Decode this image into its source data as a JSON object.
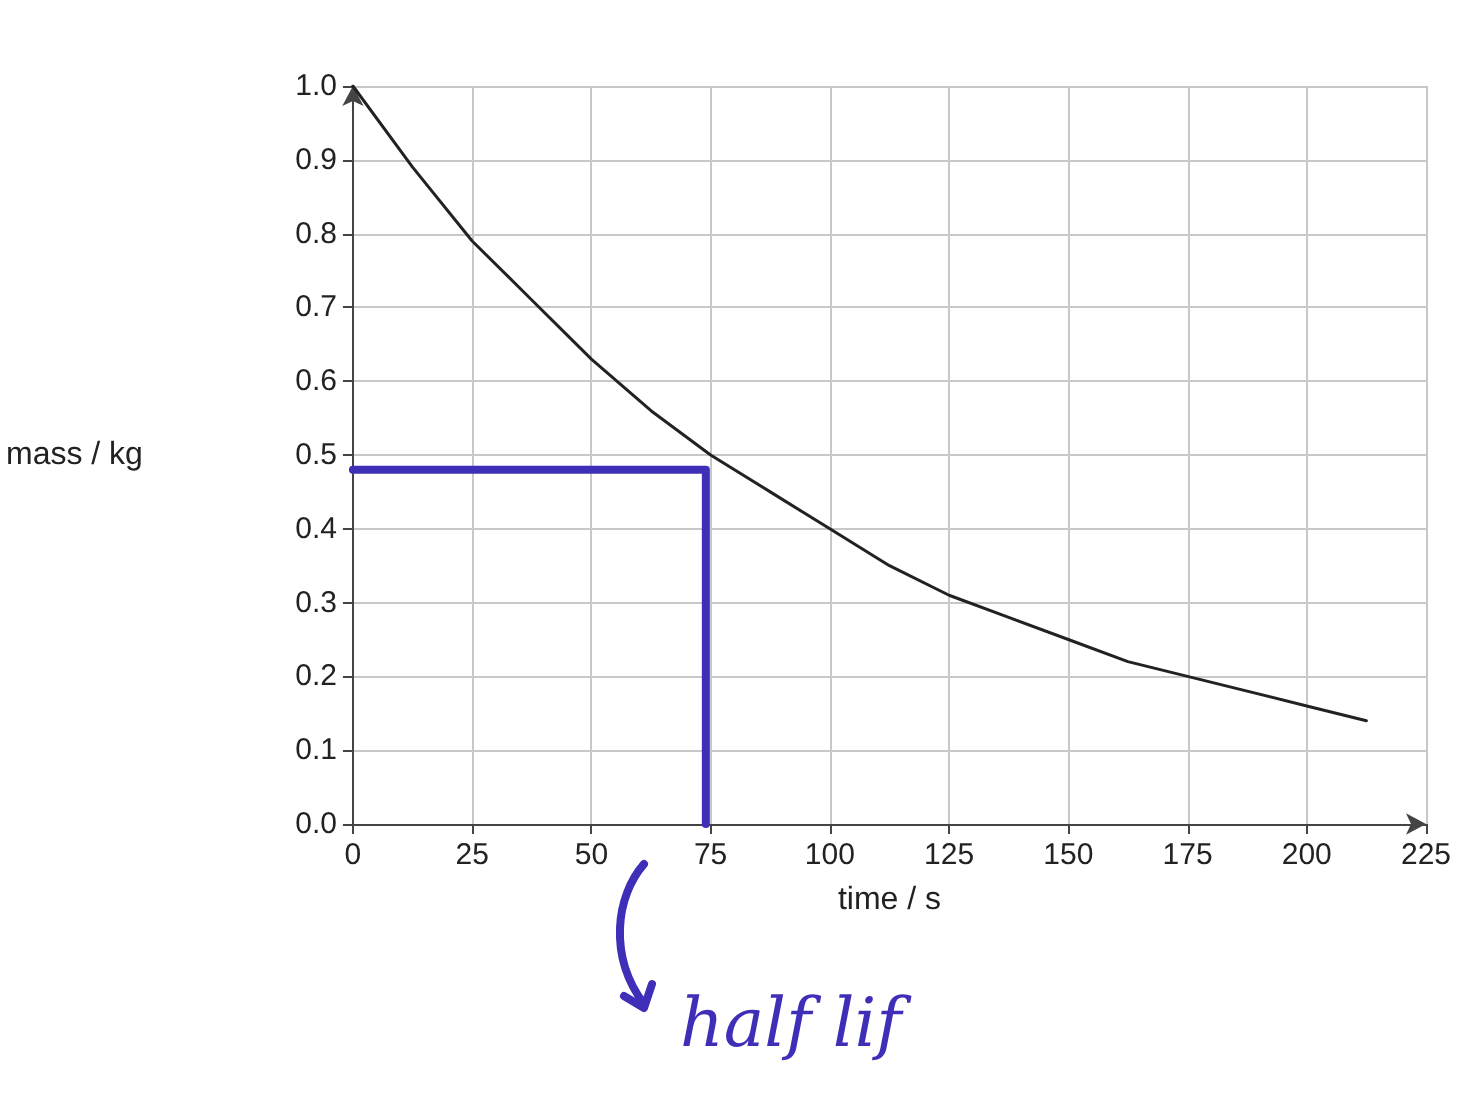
{
  "chart_data": {
    "type": "line",
    "xlabel": "time / s",
    "ylabel": "mass / kg",
    "xlim": [
      0,
      225
    ],
    "xticks": [
      0,
      25,
      50,
      75,
      100,
      125,
      150,
      175,
      200,
      225
    ],
    "ylim": [
      0,
      1
    ],
    "yticks": [
      {
        "value": 0,
        "label": "0.0"
      },
      {
        "value": 0.1,
        "label": "0.1"
      },
      {
        "value": 0.2,
        "label": "0.2"
      },
      {
        "value": 0.3,
        "label": "0.3"
      },
      {
        "value": 0.4,
        "label": "0.4"
      },
      {
        "value": 0.5,
        "label": "0.5"
      },
      {
        "value": 0.6,
        "label": "0.6"
      },
      {
        "value": 0.7,
        "label": "0.7"
      },
      {
        "value": 0.8,
        "label": "0.8"
      },
      {
        "value": 0.9,
        "label": "0.9"
      },
      {
        "value": 1,
        "label": "1.0"
      }
    ],
    "grid": true,
    "marker": "none",
    "line_style": "solid",
    "series": [
      {
        "color": "#222222",
        "x": [
          0,
          12.5,
          25,
          37.5,
          50,
          62.5,
          75,
          87.5,
          100,
          112.5,
          125,
          137.5,
          150,
          162.5,
          175,
          187.5,
          200,
          212.5
        ],
        "values": [
          1.0,
          0.89,
          0.79,
          0.71,
          0.63,
          0.56,
          0.5,
          0.45,
          0.4,
          0.35,
          0.31,
          0.28,
          0.25,
          0.22,
          0.2,
          0.18,
          0.16,
          0.14
        ]
      },
      {
        "color": "#3f2fb8",
        "x": [
          0,
          74,
          74
        ],
        "values": [
          0.48,
          0.48,
          0
        ]
      }
    ],
    "annotations": [
      "half lif"
    ]
  }
}
